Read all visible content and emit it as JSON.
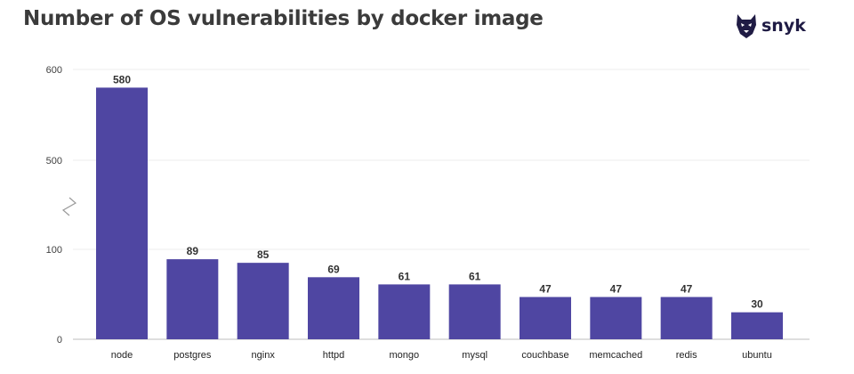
{
  "chart_data": {
    "type": "bar",
    "title": "Number of OS vulnerabilities by docker image",
    "categories": [
      "node",
      "postgres",
      "nginx",
      "httpd",
      "mongo",
      "mysql",
      "couchbase",
      "memcached",
      "redis",
      "ubuntu"
    ],
    "values": [
      580,
      89,
      85,
      69,
      61,
      61,
      47,
      47,
      47,
      30
    ],
    "data_labels": [
      "580",
      "89",
      "85",
      "69",
      "61",
      "61",
      "47",
      "47",
      "47",
      "30"
    ],
    "y_ticks": [
      "0",
      "100",
      "500",
      "600"
    ],
    "y_axis_break": [
      100,
      500
    ],
    "ylim": [
      0,
      600
    ],
    "xlabel": "",
    "ylabel": "",
    "grid": true,
    "bar_color": "#4f46a2"
  },
  "logo": {
    "text": "snyk",
    "icon": "snyk-dog-icon"
  }
}
